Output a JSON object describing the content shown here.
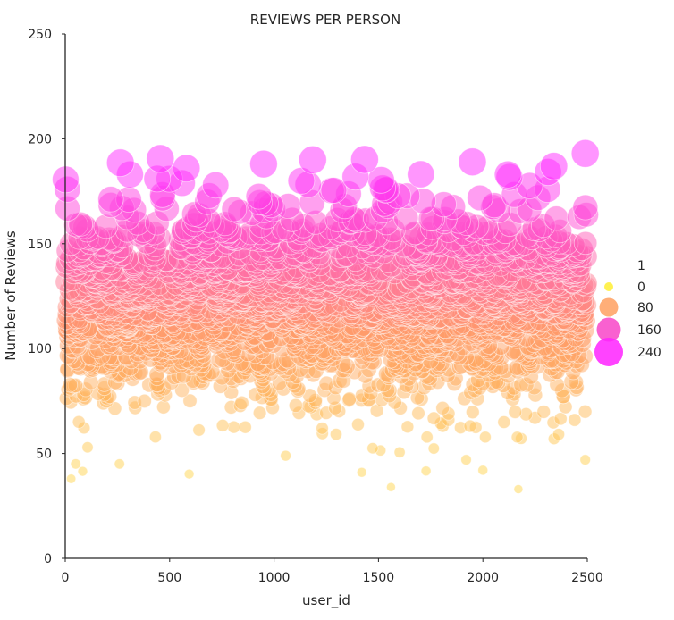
{
  "chart_data": {
    "type": "scatter",
    "title": "REVIEWS PER PERSON",
    "xlabel": "user_id",
    "ylabel": "Number of Reviews",
    "xlim": [
      0,
      2500
    ],
    "ylim": [
      0,
      250
    ],
    "x_ticks": [
      0,
      500,
      1000,
      1500,
      2000,
      2500
    ],
    "y_ticks": [
      0,
      50,
      100,
      150,
      200,
      250
    ],
    "grid": false,
    "color_scale": {
      "low": "#ffd54f",
      "mid": "#ff9a6a",
      "high": "#ff2bff"
    },
    "legend": {
      "title": "1",
      "placement": "right",
      "entries": [
        {
          "label": "0",
          "value": 0,
          "color": "#ffee33"
        },
        {
          "label": "80",
          "value": 80,
          "color": "#ffa060"
        },
        {
          "label": "160",
          "value": 160,
          "color": "#f845c8"
        },
        {
          "label": "240",
          "value": 240,
          "color": "#ff22ff"
        }
      ]
    },
    "distribution": {
      "n_points": 2500,
      "y_center": 118,
      "y_typical_range": [
        80,
        160
      ],
      "y_min": 33,
      "y_max": 193
    },
    "notable_points": [
      {
        "x": 10,
        "y": 176
      },
      {
        "x": 310,
        "y": 183
      },
      {
        "x": 440,
        "y": 181
      },
      {
        "x": 580,
        "y": 186
      },
      {
        "x": 720,
        "y": 178
      },
      {
        "x": 950,
        "y": 188
      },
      {
        "x": 1130,
        "y": 180
      },
      {
        "x": 1185,
        "y": 190
      },
      {
        "x": 1390,
        "y": 182
      },
      {
        "x": 1950,
        "y": 189
      },
      {
        "x": 2120,
        "y": 183
      },
      {
        "x": 2340,
        "y": 187
      },
      {
        "x": 2490,
        "y": 193
      },
      {
        "x": 1560,
        "y": 34
      },
      {
        "x": 2170,
        "y": 33
      },
      {
        "x": 1420,
        "y": 41
      },
      {
        "x": 2000,
        "y": 42
      },
      {
        "x": 50,
        "y": 45
      },
      {
        "x": 260,
        "y": 45
      },
      {
        "x": 2490,
        "y": 47
      },
      {
        "x": 1920,
        "y": 47
      }
    ]
  }
}
